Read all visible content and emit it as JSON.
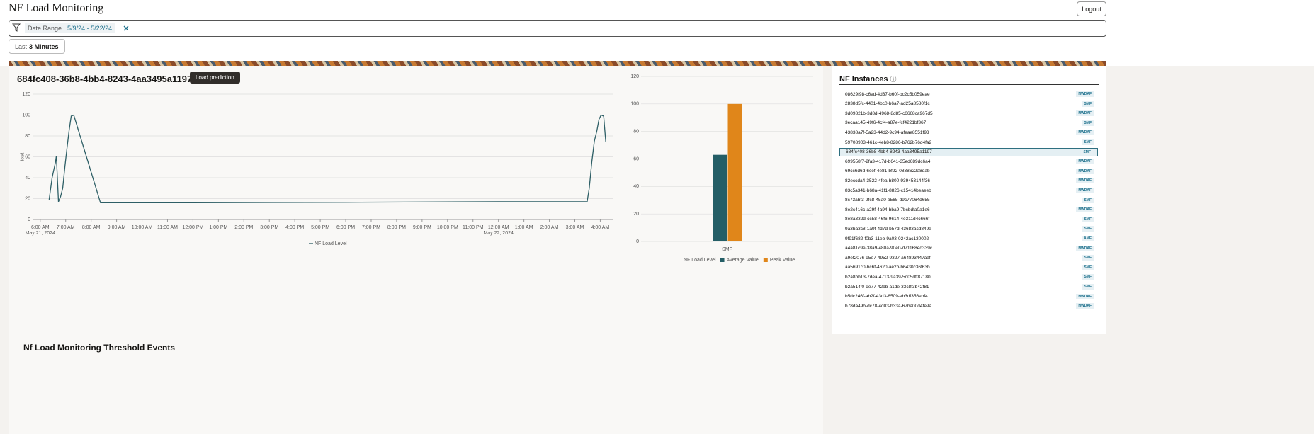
{
  "header": {
    "title": "NF Load Monitoring",
    "logout": "Logout"
  },
  "filter": {
    "label": "Date Range",
    "value": "5/9/24 - 5/22/24"
  },
  "time_button": {
    "prefix": "Last",
    "value": "3 Minutes"
  },
  "panel": {
    "title": "684fc408-36b8-4bb4-8243-4aa3495a1197",
    "button": "Load prediction"
  },
  "chart_data": [
    {
      "type": "line",
      "y_label": "load",
      "x": [
        "2024-05-21T06:21",
        "2024-05-21T06:28",
        "2024-05-21T06:36",
        "2024-05-21T06:38",
        "2024-05-21T06:43",
        "2024-05-21T06:48",
        "2024-05-21T06:53",
        "2024-05-21T06:58",
        "2024-05-21T07:03",
        "2024-05-21T07:08",
        "2024-05-21T07:13",
        "2024-05-21T07:19",
        "2024-05-21T08:22",
        "2024-05-21T12:00",
        "2024-05-21T18:00",
        "2024-05-22T00:00",
        "2024-05-22T03:29",
        "2024-05-22T03:34",
        "2024-05-22T03:40",
        "2024-05-22T03:46",
        "2024-05-22T03:52",
        "2024-05-22T03:57",
        "2024-05-22T04:02",
        "2024-05-22T04:08",
        "2024-05-22T04:13"
      ],
      "series": [
        {
          "name": "NF Load Level",
          "color": "#2e5f66",
          "values": [
            19,
            40,
            55,
            61,
            17,
            22,
            30,
            50,
            68,
            85,
            99,
            100,
            16,
            16,
            16.5,
            17,
            17,
            30,
            55,
            75,
            85,
            96,
            100,
            99,
            74
          ]
        }
      ],
      "xlim": [
        "2024-05-21T05:42",
        "2024-05-22T04:31"
      ],
      "xticks": [
        {
          "value": "2024-05-21T06:00",
          "label": "6:00 AM"
        },
        {
          "value": "2024-05-21T07:00",
          "label": "7:00 AM"
        },
        {
          "value": "2024-05-21T08:00",
          "label": "8:00 AM"
        },
        {
          "value": "2024-05-21T09:00",
          "label": "9:00 AM"
        },
        {
          "value": "2024-05-21T10:00",
          "label": "10:00 AM"
        },
        {
          "value": "2024-05-21T11:00",
          "label": "11:00 AM"
        },
        {
          "value": "2024-05-21T12:00",
          "label": "12:00 PM"
        },
        {
          "value": "2024-05-21T13:00",
          "label": "1:00 PM"
        },
        {
          "value": "2024-05-21T14:00",
          "label": "2:00 PM"
        },
        {
          "value": "2024-05-21T15:00",
          "label": "3:00 PM"
        },
        {
          "value": "2024-05-21T16:00",
          "label": "4:00 PM"
        },
        {
          "value": "2024-05-21T17:00",
          "label": "5:00 PM"
        },
        {
          "value": "2024-05-21T18:00",
          "label": "6:00 PM"
        },
        {
          "value": "2024-05-21T19:00",
          "label": "7:00 PM"
        },
        {
          "value": "2024-05-21T20:00",
          "label": "8:00 PM"
        },
        {
          "value": "2024-05-21T21:00",
          "label": "9:00 PM"
        },
        {
          "value": "2024-05-21T22:00",
          "label": "10:00 PM"
        },
        {
          "value": "2024-05-21T23:00",
          "label": "11:00 PM"
        },
        {
          "value": "2024-05-22T00:00",
          "label": "12:00 AM"
        },
        {
          "value": "2024-05-22T01:00",
          "label": "1:00 AM"
        },
        {
          "value": "2024-05-22T02:00",
          "label": "2:00 AM"
        },
        {
          "value": "2024-05-22T03:00",
          "label": "3:00 AM"
        },
        {
          "value": "2024-05-22T04:00",
          "label": "4:00 AM"
        }
      ],
      "x_date_labels": [
        {
          "value": "2024-05-21T06:00",
          "label": "May 21, 2024"
        },
        {
          "value": "2024-05-22T00:00",
          "label": "May 22, 2024"
        }
      ],
      "ylim": [
        0,
        120
      ],
      "yticks": [
        0,
        20,
        40,
        60,
        80,
        100,
        120
      ],
      "grid": true
    },
    {
      "type": "bar",
      "legend_title": "NF Load Level",
      "categories": [
        "SMF"
      ],
      "series": [
        {
          "name": "Average Value",
          "color": "#245e66",
          "values": [
            63
          ]
        },
        {
          "name": "Peak Value",
          "color": "#e0861a",
          "values": [
            100
          ]
        }
      ],
      "ylim": [
        0,
        120
      ],
      "yticks": [
        0,
        20,
        40,
        60,
        80,
        100,
        120
      ],
      "grid": true
    }
  ],
  "instances": {
    "title": "NF Instances",
    "selected": 6,
    "items": [
      {
        "id": "08629f98-c6ed-4d37-b60f-bc2c5b059eae",
        "tag": "NWDAF"
      },
      {
        "id": "2838d5fc-4401-4bc0-b6a7-ad25a8580f1c",
        "tag": "SMF"
      },
      {
        "id": "3d09821b-3d8d-4968-8d85-c6668ca967d5",
        "tag": "NWDAF"
      },
      {
        "id": "3ecaa145-49f6-4cf4-a87e-fcf4221bf367",
        "tag": "SMF"
      },
      {
        "id": "43838a7f-5a23-44d2-9c94-afeae8551f93",
        "tag": "NWDAF"
      },
      {
        "id": "59708903-461c-4eb8-8286-b762b76d4fa2",
        "tag": "SMF"
      },
      {
        "id": "684fc408-36b8-4bb4-8243-4aa3495a1197",
        "tag": "SMF"
      },
      {
        "id": "699558f7-2fa3-417d-b641-35ed689dc6a4",
        "tag": "NWDAF"
      },
      {
        "id": "69cc6d6d-6cef-4e81-bf92-0838622a8dab",
        "tag": "NWDAF"
      },
      {
        "id": "82eccda4-3522-4fea-b800-939453144f36",
        "tag": "NWDAF"
      },
      {
        "id": "83c5a341-b68a-41f1-8826-c15414beaeeb",
        "tag": "NWDAF"
      },
      {
        "id": "8c73abf3-9fc8-45a0-a565-d9c77064d655",
        "tag": "SMF"
      },
      {
        "id": "8e2c416c-a29f-4a94-bba9-7bcbdfa0a1e6",
        "tag": "NWDAF"
      },
      {
        "id": "8e8a332d-cc58-46f6-9614-4e311d4c666f",
        "tag": "SMF"
      },
      {
        "id": "9a3ba3c8-1a9f-4d7d-b57d-43683acd849e",
        "tag": "SMF"
      },
      {
        "id": "9f91f682-f0b3-11eb-9a03-0242ac130002",
        "tag": "AMF"
      },
      {
        "id": "a4a81c9e-38a9-480a-90e0-d71168ed339c",
        "tag": "NWDAF"
      },
      {
        "id": "a9ef2076-95e7-4952-9327-a64893447aaf",
        "tag": "SMF"
      },
      {
        "id": "aa5691c0-bc6f-4620-ae2b-b6430c36f63b",
        "tag": "SMF"
      },
      {
        "id": "b2a8bb13-7dea-4713-9a39-5d05dff87180",
        "tag": "SMF"
      },
      {
        "id": "b2a514f0-9e77-42bb-a1de-33c8f3b42f81",
        "tag": "SMF"
      },
      {
        "id": "b5dc246f-ab2f-43d3-8509-eb3df356ebf4",
        "tag": "NWDAF"
      },
      {
        "id": "b78da49b-dc78-4d03-b33a-67ba00d4fe9a",
        "tag": "NWDAF"
      }
    ]
  },
  "events": {
    "title": "Nf Load Monitoring Threshold Events"
  }
}
